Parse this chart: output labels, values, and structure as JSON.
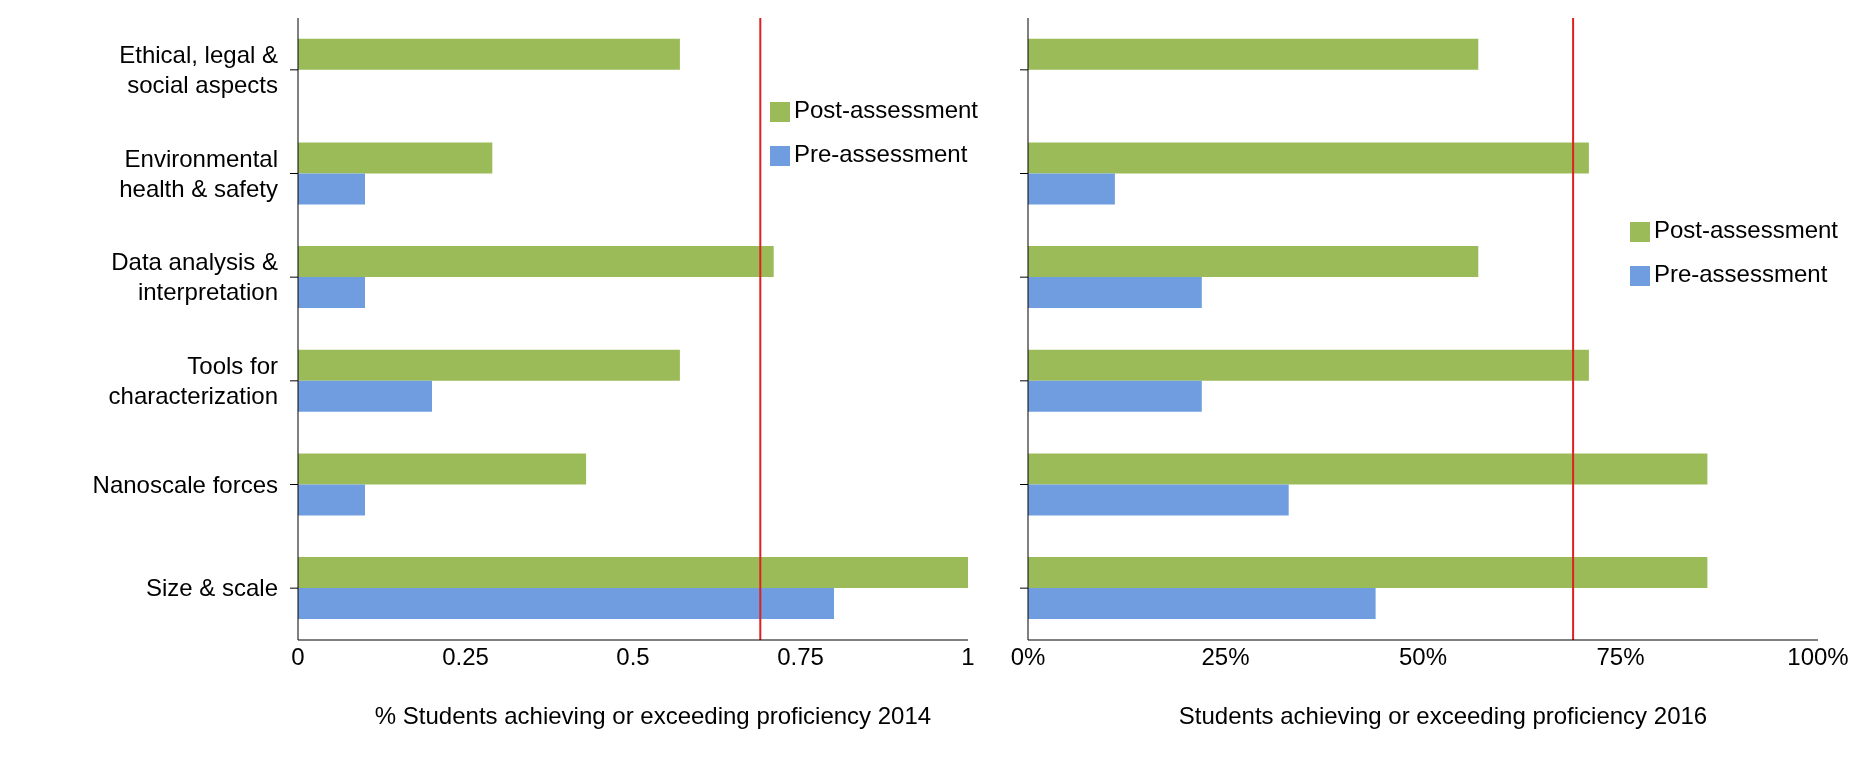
{
  "chart_data": [
    {
      "type": "bar",
      "orientation": "horizontal",
      "xlabel": "% Students achieving or exceeding proficiency 2014",
      "categories": [
        "Ethical, legal & social aspects",
        "Environmental health & safety",
        "Data analysis & interpretation",
        "Tools for characterization",
        "Nanoscale forces",
        "Size & scale"
      ],
      "series": [
        {
          "name": "Post-assessment",
          "color": "#9bbb59",
          "values": [
            0.57,
            0.29,
            0.71,
            0.57,
            0.43,
            1.0
          ]
        },
        {
          "name": "Pre-assessment",
          "color": "#6f9de0",
          "values": [
            0,
            0.1,
            0.1,
            0.2,
            0.1,
            0.8
          ]
        }
      ],
      "xlim": [
        0,
        1
      ],
      "xticks": [
        0,
        0.25,
        0.5,
        0.75,
        1
      ],
      "ref_lines": [
        {
          "axis": "x",
          "value": 0.69,
          "color": "#e02020"
        }
      ],
      "legend": "top right",
      "grid": false
    },
    {
      "type": "bar",
      "orientation": "horizontal",
      "xlabel": "Students achieving or exceeding proficiency 2016",
      "categories": [
        null,
        null,
        null,
        null,
        null,
        null
      ],
      "series": [
        {
          "name": "Post-assessment",
          "color": "#9bbb59",
          "values": [
            57,
            71,
            57,
            71,
            86,
            86
          ]
        },
        {
          "name": "Pre-assessment",
          "color": "#6f9de0",
          "values": [
            0,
            11,
            22,
            22,
            33,
            44
          ]
        }
      ],
      "xlim": [
        0,
        100
      ],
      "xticks": [
        {
          "value": 0,
          "label": "0%"
        },
        {
          "value": 25,
          "label": "25%"
        },
        {
          "value": 50,
          "label": "50%"
        },
        {
          "value": 75,
          "label": "75%"
        },
        {
          "value": 100,
          "label": "100%"
        }
      ],
      "ref_lines": [
        {
          "axis": "x",
          "value": 69,
          "color": "#e02020"
        }
      ],
      "legend": "right",
      "grid": false,
      "tick_labels": "x"
    }
  ]
}
